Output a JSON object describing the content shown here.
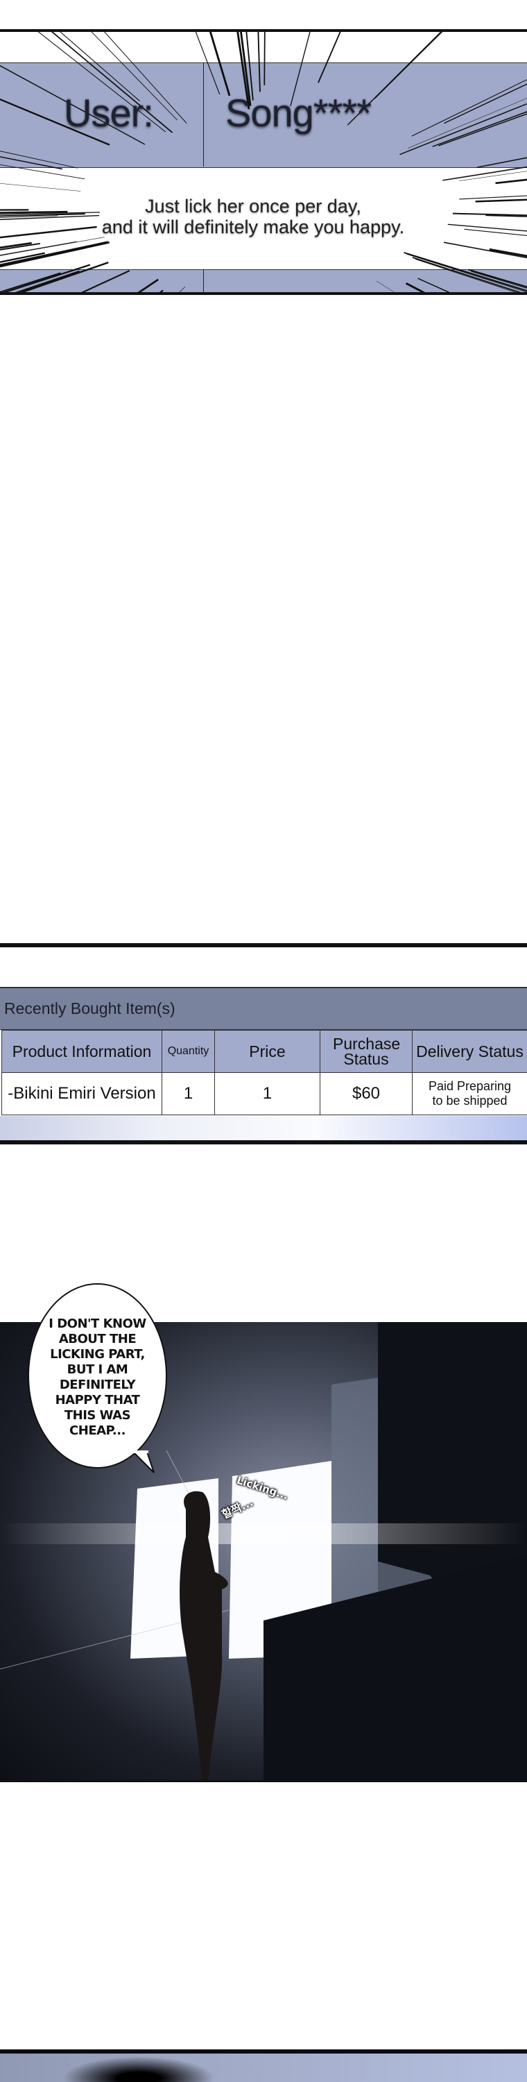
{
  "panel1": {
    "user_label": "User:",
    "user_name": "Song****",
    "caption_line1": "Just lick her once per day,",
    "caption_line2": "and it will definitely make you happy.",
    "band_color": "#a0a9c9"
  },
  "panel2": {
    "title": "Recently Bought Item(s)",
    "columns": [
      "Product Information",
      "Quantity",
      "Price",
      "Purchase Status",
      "Delivery Status"
    ],
    "rows": [
      {
        "product": "-Bikini Emiri Version",
        "quantity": "1",
        "price": "1",
        "purchase_status": "$60",
        "delivery_status": "Paid Preparing to be shipped"
      }
    ],
    "header_color": "#7a839e",
    "column_header_color": "#a2abcb"
  },
  "panel3": {
    "speech": [
      "I DON'T KNOW",
      "ABOUT THE",
      "LICKING PART,",
      "BUT I AM",
      "DEFINITELY",
      "HAPPY THAT",
      "THIS WAS",
      "CHEAP..."
    ],
    "sfx_english": "Licking...",
    "sfx_korean": "할짝..."
  }
}
